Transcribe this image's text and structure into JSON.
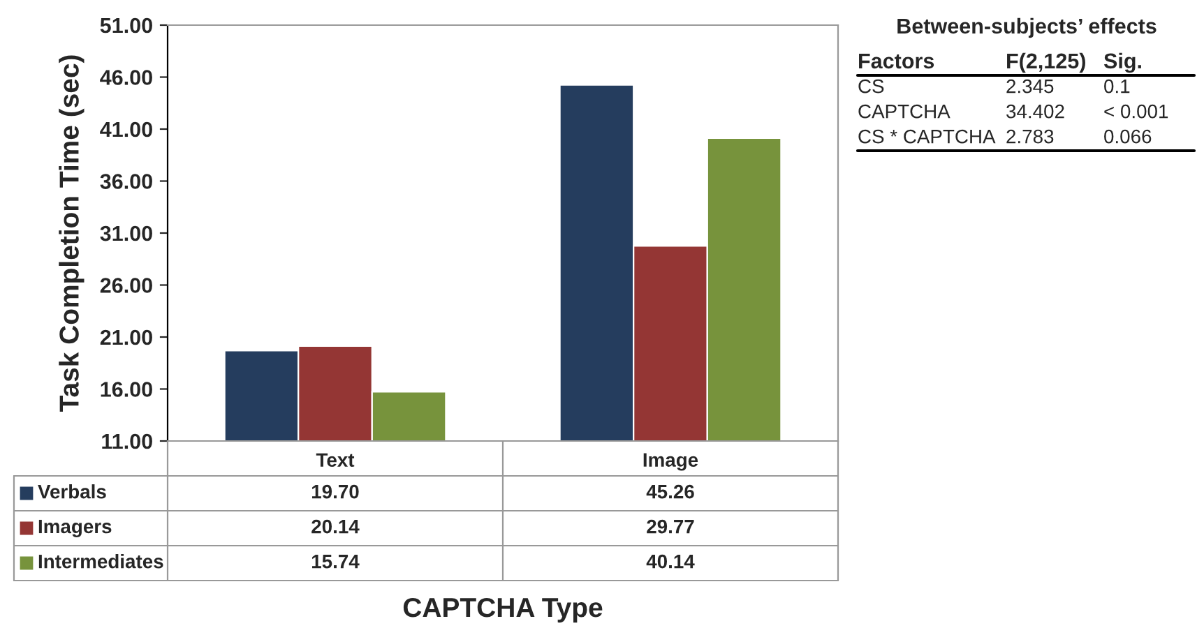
{
  "chart_data": {
    "type": "bar",
    "ylabel": "Task Completion Time (sec)",
    "xlabel": "CAPTCHA Type",
    "categories": [
      "Text",
      "Image"
    ],
    "series": [
      {
        "name": "Verbals",
        "color": "#253d5e",
        "values": [
          19.7,
          45.26
        ],
        "value_labels": [
          "19.70",
          "45.26"
        ]
      },
      {
        "name": "Imagers",
        "color": "#943634",
        "values": [
          20.14,
          29.77
        ],
        "value_labels": [
          "20.14",
          "29.77"
        ]
      },
      {
        "name": "Intermediates",
        "color": "#77933c",
        "values": [
          15.74,
          40.14
        ],
        "value_labels": [
          "15.74",
          "40.14"
        ]
      }
    ],
    "ylim": [
      11,
      51
    ],
    "yticks": [
      {
        "value": 11,
        "label": "11.00"
      },
      {
        "value": 16,
        "label": "16.00"
      },
      {
        "value": 21,
        "label": "21.00"
      },
      {
        "value": 26,
        "label": "26.00"
      },
      {
        "value": 31,
        "label": "31.00"
      },
      {
        "value": 36,
        "label": "36.00"
      },
      {
        "value": 41,
        "label": "41.00"
      },
      {
        "value": 46,
        "label": "46.00"
      },
      {
        "value": 51,
        "label": "51.00"
      }
    ],
    "grid": false,
    "legend": "bottom",
    "annotations": [
      "Between-subjects’ effects",
      "Factors",
      "F(2,125)",
      "Sig.",
      "CS",
      "2.345",
      "0.1",
      "CAPTCHA",
      "34.402",
      "< 0.001",
      "CS * CAPTCHA",
      "2.783",
      "0.066"
    ]
  }
}
